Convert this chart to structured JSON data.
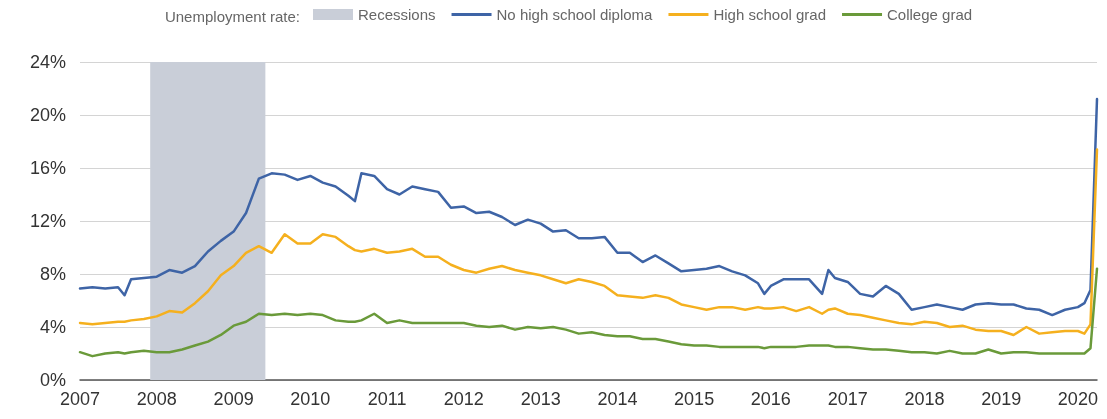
{
  "chart_data": {
    "type": "line",
    "legend_title": "Unemployment rate:",
    "x": [
      "2007-01",
      "2007-03",
      "2007-05",
      "2007-07",
      "2007-08",
      "2007-09",
      "2007-11",
      "2008-01",
      "2008-03",
      "2008-05",
      "2008-07",
      "2008-09",
      "2008-11",
      "2009-01",
      "2009-03",
      "2009-05",
      "2009-07",
      "2009-09",
      "2009-11",
      "2010-01",
      "2010-03",
      "2010-05",
      "2010-07",
      "2010-08",
      "2010-09",
      "2010-11",
      "2011-01",
      "2011-03",
      "2011-05",
      "2011-07",
      "2011-09",
      "2011-11",
      "2012-01",
      "2012-03",
      "2012-05",
      "2012-07",
      "2012-09",
      "2012-11",
      "2013-01",
      "2013-03",
      "2013-05",
      "2013-07",
      "2013-09",
      "2013-11",
      "2014-01",
      "2014-03",
      "2014-05",
      "2014-07",
      "2014-09",
      "2014-11",
      "2015-01",
      "2015-03",
      "2015-05",
      "2015-07",
      "2015-09",
      "2015-11",
      "2015-12",
      "2016-01",
      "2016-03",
      "2016-05",
      "2016-07",
      "2016-09",
      "2016-10",
      "2016-11",
      "2017-01",
      "2017-03",
      "2017-05",
      "2017-07",
      "2017-09",
      "2017-11",
      "2018-01",
      "2018-03",
      "2018-05",
      "2018-07",
      "2018-09",
      "2018-11",
      "2019-01",
      "2019-03",
      "2019-05",
      "2019-07",
      "2019-09",
      "2019-11",
      "2020-01",
      "2020-02",
      "2020-03",
      "2020-04"
    ],
    "series": [
      {
        "name": "No high school diploma",
        "color": "#3e64a6",
        "values": [
          6.9,
          7.0,
          6.9,
          7.0,
          6.4,
          7.6,
          7.7,
          7.8,
          8.3,
          8.1,
          8.6,
          9.7,
          10.5,
          11.2,
          12.6,
          15.2,
          15.6,
          15.5,
          15.1,
          15.4,
          14.9,
          14.6,
          13.9,
          13.5,
          15.6,
          15.4,
          14.4,
          14.0,
          14.6,
          14.4,
          14.2,
          13.0,
          13.1,
          12.6,
          12.7,
          12.3,
          11.7,
          12.1,
          11.8,
          11.2,
          11.3,
          10.7,
          10.7,
          10.8,
          9.6,
          9.6,
          8.9,
          9.4,
          8.8,
          8.2,
          8.3,
          8.4,
          8.6,
          8.2,
          7.9,
          7.3,
          6.5,
          7.1,
          7.6,
          7.6,
          7.6,
          6.5,
          8.3,
          7.7,
          7.4,
          6.5,
          6.3,
          7.1,
          6.5,
          5.3,
          5.5,
          5.7,
          5.5,
          5.3,
          5.7,
          5.8,
          5.7,
          5.7,
          5.4,
          5.3,
          4.9,
          5.3,
          5.5,
          5.8,
          6.8,
          21.2
        ]
      },
      {
        "name": "High school grad",
        "color": "#f5b01e",
        "values": [
          4.3,
          4.2,
          4.3,
          4.4,
          4.4,
          4.5,
          4.6,
          4.8,
          5.2,
          5.1,
          5.8,
          6.7,
          7.9,
          8.6,
          9.6,
          10.1,
          9.6,
          11.0,
          10.3,
          10.3,
          11.0,
          10.8,
          10.1,
          9.8,
          9.7,
          9.9,
          9.6,
          9.7,
          9.9,
          9.3,
          9.3,
          8.7,
          8.3,
          8.1,
          8.4,
          8.6,
          8.3,
          8.1,
          7.9,
          7.6,
          7.3,
          7.6,
          7.4,
          7.1,
          6.4,
          6.3,
          6.2,
          6.4,
          6.2,
          5.7,
          5.5,
          5.3,
          5.5,
          5.5,
          5.3,
          5.5,
          5.4,
          5.4,
          5.5,
          5.2,
          5.5,
          5.0,
          5.3,
          5.4,
          5.0,
          4.9,
          4.7,
          4.5,
          4.3,
          4.2,
          4.4,
          4.3,
          4.0,
          4.1,
          3.8,
          3.7,
          3.7,
          3.4,
          4.0,
          3.5,
          3.6,
          3.7,
          3.7,
          3.5,
          4.2,
          17.4
        ]
      },
      {
        "name": "College grad",
        "color": "#6a9a3a",
        "values": [
          2.1,
          1.8,
          2.0,
          2.1,
          2.0,
          2.1,
          2.2,
          2.1,
          2.1,
          2.3,
          2.6,
          2.9,
          3.4,
          4.1,
          4.4,
          5.0,
          4.9,
          5.0,
          4.9,
          5.0,
          4.9,
          4.5,
          4.4,
          4.4,
          4.5,
          5.0,
          4.3,
          4.5,
          4.3,
          4.3,
          4.3,
          4.3,
          4.3,
          4.1,
          4.0,
          4.1,
          3.8,
          4.0,
          3.9,
          4.0,
          3.8,
          3.5,
          3.6,
          3.4,
          3.3,
          3.3,
          3.1,
          3.1,
          2.9,
          2.7,
          2.6,
          2.6,
          2.5,
          2.5,
          2.5,
          2.5,
          2.4,
          2.5,
          2.5,
          2.5,
          2.6,
          2.6,
          2.6,
          2.5,
          2.5,
          2.4,
          2.3,
          2.3,
          2.2,
          2.1,
          2.1,
          2.0,
          2.2,
          2.0,
          2.0,
          2.3,
          2.0,
          2.1,
          2.1,
          2.0,
          2.0,
          2.0,
          2.0,
          2.0,
          2.4,
          8.4
        ]
      }
    ],
    "bands": [
      {
        "axis": "x",
        "from": "2007-12",
        "to": "2009-06",
        "label": "Recessions",
        "color": "#c9ced8"
      }
    ],
    "xlim": [
      "2007-01",
      "2020-04"
    ],
    "xticks": [
      "2007",
      "2008",
      "2009",
      "2010",
      "2011",
      "2012",
      "2013",
      "2014",
      "2015",
      "2016",
      "2017",
      "2018",
      "2019",
      "2020"
    ],
    "ylim": [
      0,
      24
    ],
    "yticks": [
      {
        "value": 0,
        "label": "0%"
      },
      {
        "value": 4,
        "label": "4%"
      },
      {
        "value": 8,
        "label": "8%"
      },
      {
        "value": 12,
        "label": "12%"
      },
      {
        "value": 16,
        "label": "16%"
      },
      {
        "value": 20,
        "label": "20%"
      },
      {
        "value": 24,
        "label": "24%"
      }
    ],
    "grid": "y",
    "legend": "top",
    "marker": "none",
    "line_style": "solid"
  }
}
